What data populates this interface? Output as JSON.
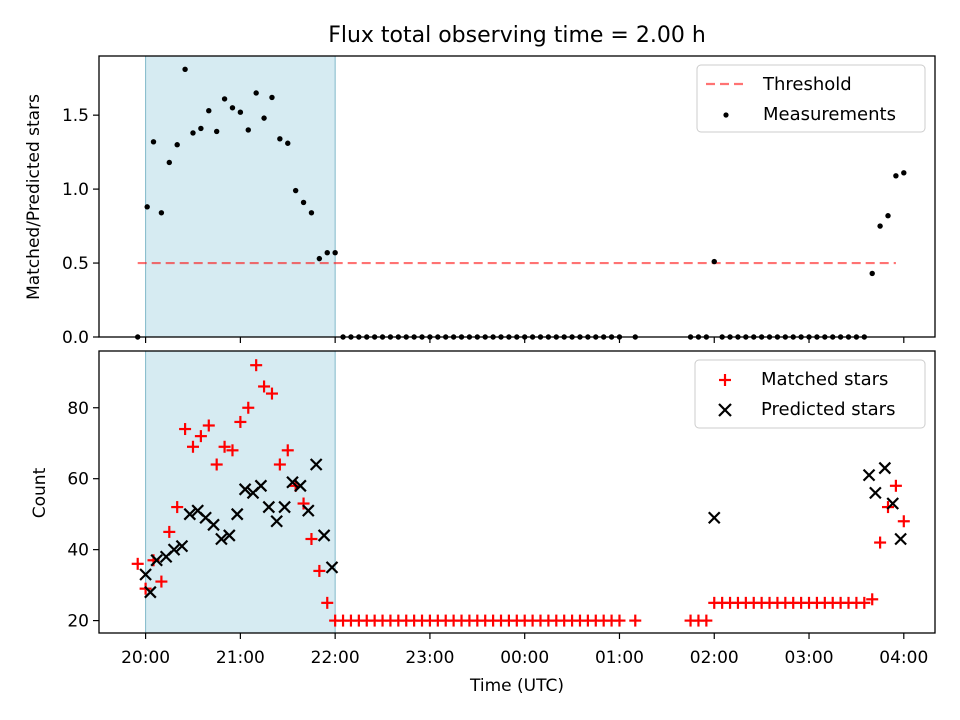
{
  "chart_data": {
    "title": "Flux total observing time = 2.00 h",
    "x_ticks": [
      "20:00",
      "21:00",
      "22:00",
      "23:00",
      "00:00",
      "01:00",
      "02:00",
      "03:00",
      "04:00"
    ],
    "xlabel": "Time (UTC)",
    "shaded_interval": [
      "20:00",
      "22:00"
    ],
    "colors": {
      "shade": "#add8e6",
      "threshold": "#ff0000",
      "measurement": "#000000",
      "matched": "#ff0000",
      "predicted": "#000000"
    },
    "top": {
      "type": "scatter",
      "ylabel": "Matched/Predicted stars",
      "ylim": [
        0,
        1.9
      ],
      "y_ticks": [
        "0.0",
        "0.5",
        "1.0",
        "1.5"
      ],
      "legend": {
        "position": "top-right",
        "threshold_label": "Threshold",
        "measurements_label": "Measurements"
      },
      "threshold": {
        "value": 0.5,
        "x_start": "19:55",
        "x_end": "03:55"
      },
      "points": [
        [
          "19:55",
          0
        ],
        [
          "20:01",
          0.88
        ],
        [
          "20:05",
          1.32
        ],
        [
          "20:10",
          0.84
        ],
        [
          "20:15",
          1.18
        ],
        [
          "20:20",
          1.3
        ],
        [
          "20:25",
          1.81
        ],
        [
          "20:30",
          1.38
        ],
        [
          "20:35",
          1.41
        ],
        [
          "20:40",
          1.53
        ],
        [
          "20:45",
          1.39
        ],
        [
          "20:50",
          1.61
        ],
        [
          "20:55",
          1.55
        ],
        [
          "21:00",
          1.52
        ],
        [
          "21:05",
          1.4
        ],
        [
          "21:10",
          1.65
        ],
        [
          "21:15",
          1.48
        ],
        [
          "21:20",
          1.62
        ],
        [
          "21:25",
          1.34
        ],
        [
          "21:30",
          1.31
        ],
        [
          "21:35",
          0.99
        ],
        [
          "21:40",
          0.91
        ],
        [
          "21:45",
          0.84
        ],
        [
          "21:50",
          0.53
        ],
        [
          "21:55",
          0.57
        ],
        [
          "22:00",
          0.57
        ],
        [
          "22:05",
          0
        ],
        [
          "22:10",
          0
        ],
        [
          "22:15",
          0
        ],
        [
          "22:20",
          0
        ],
        [
          "22:25",
          0
        ],
        [
          "22:30",
          0
        ],
        [
          "22:35",
          0
        ],
        [
          "22:40",
          0
        ],
        [
          "22:45",
          0
        ],
        [
          "22:50",
          0
        ],
        [
          "22:55",
          0
        ],
        [
          "23:00",
          0
        ],
        [
          "23:05",
          0
        ],
        [
          "23:10",
          0
        ],
        [
          "23:15",
          0
        ],
        [
          "23:20",
          0
        ],
        [
          "23:25",
          0
        ],
        [
          "23:30",
          0
        ],
        [
          "23:35",
          0
        ],
        [
          "23:40",
          0
        ],
        [
          "23:45",
          0
        ],
        [
          "23:50",
          0
        ],
        [
          "23:55",
          0
        ],
        [
          "00:00",
          0
        ],
        [
          "00:05",
          0
        ],
        [
          "00:10",
          0
        ],
        [
          "00:15",
          0
        ],
        [
          "00:20",
          0
        ],
        [
          "00:25",
          0
        ],
        [
          "00:30",
          0
        ],
        [
          "00:35",
          0
        ],
        [
          "00:40",
          0
        ],
        [
          "00:45",
          0
        ],
        [
          "00:50",
          0
        ],
        [
          "00:55",
          0
        ],
        [
          "01:00",
          0
        ],
        [
          "01:10",
          0
        ],
        [
          "01:45",
          0
        ],
        [
          "01:50",
          0
        ],
        [
          "01:55",
          0
        ],
        [
          "02:00",
          0.51
        ],
        [
          "02:05",
          0
        ],
        [
          "02:10",
          0
        ],
        [
          "02:15",
          0
        ],
        [
          "02:20",
          0
        ],
        [
          "02:25",
          0
        ],
        [
          "02:30",
          0
        ],
        [
          "02:35",
          0
        ],
        [
          "02:40",
          0
        ],
        [
          "02:45",
          0
        ],
        [
          "02:50",
          0
        ],
        [
          "02:55",
          0
        ],
        [
          "03:00",
          0
        ],
        [
          "03:05",
          0
        ],
        [
          "03:10",
          0
        ],
        [
          "03:15",
          0
        ],
        [
          "03:20",
          0
        ],
        [
          "03:25",
          0
        ],
        [
          "03:30",
          0
        ],
        [
          "03:35",
          0.0
        ],
        [
          "03:40",
          0.43
        ],
        [
          "03:45",
          0.75
        ],
        [
          "03:50",
          0.82
        ],
        [
          "03:55",
          1.09
        ],
        [
          "04:00",
          1.11
        ]
      ]
    },
    "bottom": {
      "type": "scatter",
      "ylabel": "Count",
      "ylim": [
        16.5,
        96
      ],
      "y_ticks": [
        "20",
        "40",
        "60",
        "80"
      ],
      "legend": {
        "position": "top-right",
        "matched_label": "Matched stars",
        "predicted_label": "Predicted stars"
      },
      "matched": [
        [
          "19:55",
          36
        ],
        [
          "20:00",
          29
        ],
        [
          "20:05",
          37
        ],
        [
          "20:10",
          31
        ],
        [
          "20:15",
          45
        ],
        [
          "20:20",
          52
        ],
        [
          "20:25",
          74
        ],
        [
          "20:30",
          69
        ],
        [
          "20:35",
          72
        ],
        [
          "20:40",
          75
        ],
        [
          "20:45",
          64
        ],
        [
          "20:50",
          69
        ],
        [
          "20:55",
          68
        ],
        [
          "21:00",
          76
        ],
        [
          "21:05",
          80
        ],
        [
          "21:10",
          92
        ],
        [
          "21:15",
          86
        ],
        [
          "21:20",
          84
        ],
        [
          "21:25",
          64
        ],
        [
          "21:30",
          68
        ],
        [
          "21:35",
          58
        ],
        [
          "21:40",
          53
        ],
        [
          "21:45",
          43
        ],
        [
          "21:50",
          34
        ],
        [
          "21:55",
          25
        ],
        [
          "22:00",
          20
        ],
        [
          "22:05",
          20
        ],
        [
          "22:10",
          20
        ],
        [
          "22:15",
          20
        ],
        [
          "22:20",
          20
        ],
        [
          "22:25",
          20
        ],
        [
          "22:30",
          20
        ],
        [
          "22:35",
          20
        ],
        [
          "22:40",
          20
        ],
        [
          "22:45",
          20
        ],
        [
          "22:50",
          20
        ],
        [
          "22:55",
          20
        ],
        [
          "23:00",
          20
        ],
        [
          "23:05",
          20
        ],
        [
          "23:10",
          20
        ],
        [
          "23:15",
          20
        ],
        [
          "23:20",
          20
        ],
        [
          "23:25",
          20
        ],
        [
          "23:30",
          20
        ],
        [
          "23:35",
          20
        ],
        [
          "23:40",
          20
        ],
        [
          "23:45",
          20
        ],
        [
          "23:50",
          20
        ],
        [
          "23:55",
          20
        ],
        [
          "00:00",
          20
        ],
        [
          "00:05",
          20
        ],
        [
          "00:10",
          20
        ],
        [
          "00:15",
          20
        ],
        [
          "00:20",
          20
        ],
        [
          "00:25",
          20
        ],
        [
          "00:30",
          20
        ],
        [
          "00:35",
          20
        ],
        [
          "00:40",
          20
        ],
        [
          "00:45",
          20
        ],
        [
          "00:50",
          20
        ],
        [
          "00:55",
          20
        ],
        [
          "01:00",
          20
        ],
        [
          "01:10",
          20
        ],
        [
          "01:45",
          20
        ],
        [
          "01:50",
          20
        ],
        [
          "01:55",
          20
        ],
        [
          "02:00",
          25
        ],
        [
          "02:05",
          25
        ],
        [
          "02:10",
          25
        ],
        [
          "02:15",
          25
        ],
        [
          "02:20",
          25
        ],
        [
          "02:25",
          25
        ],
        [
          "02:30",
          25
        ],
        [
          "02:35",
          25
        ],
        [
          "02:40",
          25
        ],
        [
          "02:45",
          25
        ],
        [
          "02:50",
          25
        ],
        [
          "02:55",
          25
        ],
        [
          "03:00",
          25
        ],
        [
          "03:05",
          25
        ],
        [
          "03:10",
          25
        ],
        [
          "03:15",
          25
        ],
        [
          "03:20",
          25
        ],
        [
          "03:25",
          25
        ],
        [
          "03:30",
          25
        ],
        [
          "03:35",
          25
        ],
        [
          "03:40",
          26
        ],
        [
          "03:45",
          42
        ],
        [
          "03:50",
          52
        ],
        [
          "03:55",
          58
        ],
        [
          "04:00",
          48
        ]
      ],
      "predicted": [
        [
          "20:00",
          33
        ],
        [
          "20:03",
          28
        ],
        [
          "20:07",
          37
        ],
        [
          "20:13",
          38
        ],
        [
          "20:18",
          40
        ],
        [
          "20:23",
          41
        ],
        [
          "20:28",
          50
        ],
        [
          "20:33",
          51
        ],
        [
          "20:38",
          49
        ],
        [
          "20:43",
          47
        ],
        [
          "20:48",
          43
        ],
        [
          "20:53",
          44
        ],
        [
          "20:58",
          50
        ],
        [
          "21:03",
          57
        ],
        [
          "21:08",
          56
        ],
        [
          "21:13",
          58
        ],
        [
          "21:18",
          52
        ],
        [
          "21:23",
          48
        ],
        [
          "21:28",
          52
        ],
        [
          "21:33",
          59
        ],
        [
          "21:38",
          58
        ],
        [
          "21:43",
          51
        ],
        [
          "21:48",
          64
        ],
        [
          "21:53",
          44
        ],
        [
          "21:58",
          35
        ],
        [
          "02:00",
          49
        ],
        [
          "03:38",
          61
        ],
        [
          "03:42",
          56
        ],
        [
          "03:48",
          63
        ],
        [
          "03:53",
          53
        ],
        [
          "03:58",
          43
        ]
      ]
    }
  }
}
